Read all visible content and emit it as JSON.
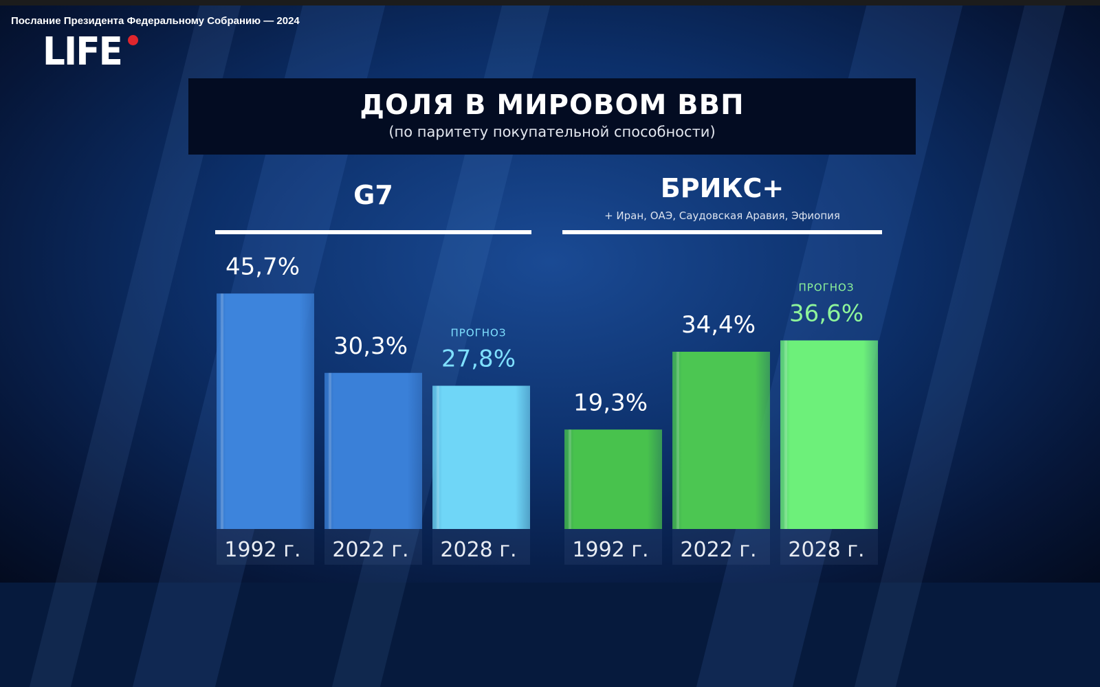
{
  "video_title": "Послание Президента Федеральному Собранию — 2024",
  "logo": "LIFE",
  "chart_data": {
    "type": "bar",
    "title": "ДОЛЯ В МИРОВОМ ВВП",
    "subtitle": "(по паритету покупательной способности)",
    "unit": "%",
    "forecast_label": "ПРОГНОЗ",
    "groups": [
      {
        "name": "G7",
        "note": "",
        "categories": [
          "1992 г.",
          "2022 г.",
          "2028 г."
        ],
        "values": [
          45.7,
          30.3,
          27.8
        ],
        "labels": [
          "45,7%",
          "30,3%",
          "27,8%"
        ],
        "forecast": [
          false,
          false,
          true
        ],
        "colors": [
          "#3d84dc",
          "#3a80d8",
          "#6fd6f7"
        ],
        "label_colors": [
          "#ffffff",
          "#ffffff",
          "#7fe0ff"
        ]
      },
      {
        "name": "БРИКС+",
        "note": "+ Иран, ОАЭ, Саудовская Аравия, Эфиопия",
        "categories": [
          "1992 г.",
          "2022 г.",
          "2028 г."
        ],
        "values": [
          19.3,
          34.4,
          36.6
        ],
        "labels": [
          "19,3%",
          "34,4%",
          "36,6%"
        ],
        "forecast": [
          false,
          false,
          true
        ],
        "colors": [
          "#48c24d",
          "#4cc652",
          "#6df07a"
        ],
        "label_colors": [
          "#ffffff",
          "#ffffff",
          "#8ff59a"
        ]
      }
    ]
  }
}
